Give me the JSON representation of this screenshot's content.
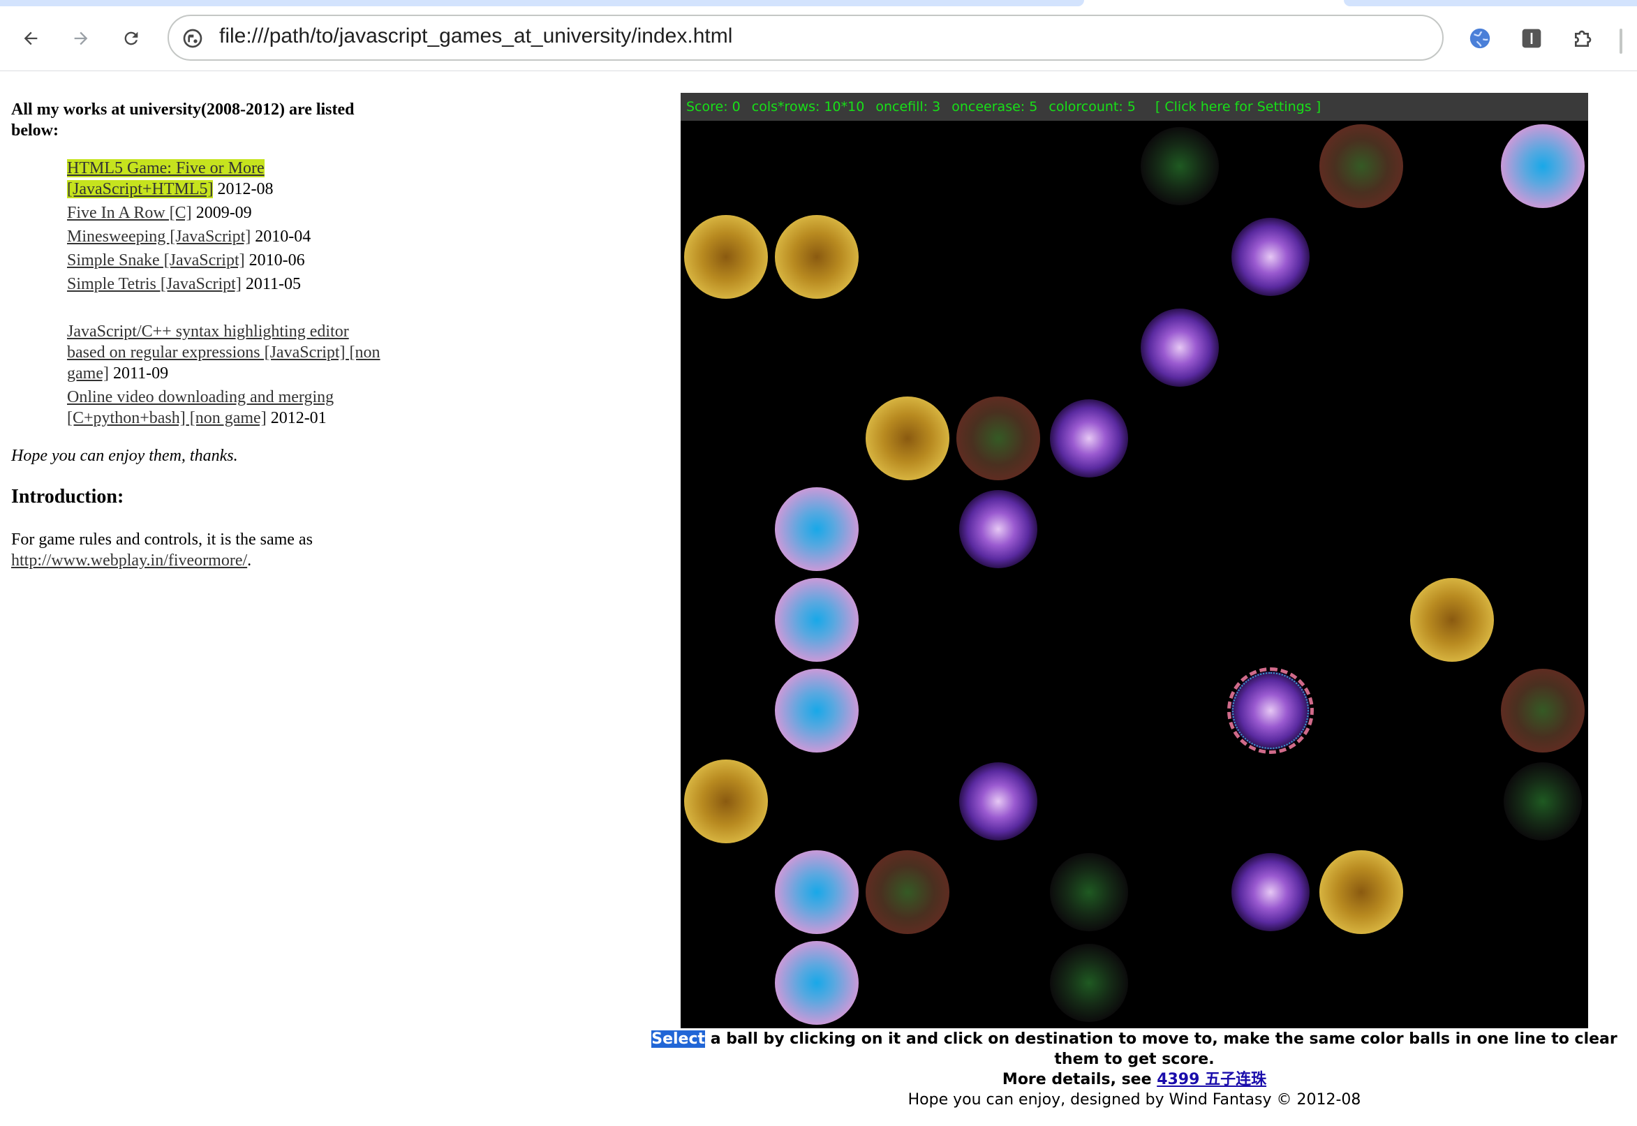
{
  "browser": {
    "url": "file:///path/to/javascript_games_at_university/index.html",
    "icons": [
      "back-arrow-icon",
      "forward-arrow-icon",
      "reload-icon",
      "site-info-icon",
      "globe-extension-icon",
      "reader-extension-icon",
      "puzzle-extensions-icon"
    ]
  },
  "left": {
    "heading": "All my works at university(2008-2012) are listed below:",
    "games": [
      {
        "link": "HTML5 Game: Five or More [JavaScript+HTML5]",
        "date": " 2012-08",
        "highlighted": true
      },
      {
        "link": "Five In A Row [C]",
        "date": " 2009-09"
      },
      {
        "link": "Minesweeping [JavaScript]",
        "date": " 2010-04"
      },
      {
        "link": "Simple Snake [JavaScript]",
        "date": " 2010-06"
      },
      {
        "link": "Simple Tetris [JavaScript]",
        "date": " 2011-05"
      }
    ],
    "others": [
      {
        "link": "JavaScript/C++ syntax highlighting editor based on regular expressions [JavaScript] [non game]",
        "date": " 2011-09"
      },
      {
        "link": "Online video downloading and merging [C+python+bash] [non game]",
        "date": " 2012-01"
      }
    ],
    "thanks": "Hope you can enjoy them, thanks.",
    "intro_heading": "Introduction:",
    "intro_text": "For game rules and controls, it is the same as ",
    "intro_link": "http://www.webplay.in/fiveormore/",
    "intro_end": "."
  },
  "game": {
    "status": {
      "score": "Score: 0",
      "size": "cols*rows: 10*10",
      "oncefill": "oncefill: 3",
      "onceerase": "onceerase: 5",
      "colorcount": "colorcount: 5",
      "settings": "[ Click here for Settings ]"
    },
    "balls": [
      {
        "col": 5,
        "row": 0,
        "color": "green",
        "preview": true
      },
      {
        "col": 7,
        "row": 0,
        "color": "red"
      },
      {
        "col": 9,
        "row": 0,
        "color": "blue"
      },
      {
        "col": 0,
        "row": 1,
        "color": "yellow"
      },
      {
        "col": 1,
        "row": 1,
        "color": "yellow"
      },
      {
        "col": 6,
        "row": 1,
        "color": "purple",
        "preview": true
      },
      {
        "col": 5,
        "row": 2,
        "color": "purple",
        "preview": true
      },
      {
        "col": 2,
        "row": 3,
        "color": "yellow"
      },
      {
        "col": 3,
        "row": 3,
        "color": "red"
      },
      {
        "col": 4,
        "row": 3,
        "color": "purple",
        "preview": true
      },
      {
        "col": 1,
        "row": 4,
        "color": "blue"
      },
      {
        "col": 3,
        "row": 4,
        "color": "purple",
        "preview": true
      },
      {
        "col": 1,
        "row": 5,
        "color": "blue"
      },
      {
        "col": 8,
        "row": 5,
        "color": "yellow"
      },
      {
        "col": 1,
        "row": 6,
        "color": "blue"
      },
      {
        "col": 6,
        "row": 6,
        "color": "purple",
        "selected": true
      },
      {
        "col": 9,
        "row": 6,
        "color": "red"
      },
      {
        "col": 0,
        "row": 7,
        "color": "yellow"
      },
      {
        "col": 3,
        "row": 7,
        "color": "purple",
        "preview": true
      },
      {
        "col": 9,
        "row": 7,
        "color": "green",
        "preview": true
      },
      {
        "col": 1,
        "row": 8,
        "color": "blue"
      },
      {
        "col": 2,
        "row": 8,
        "color": "red"
      },
      {
        "col": 4,
        "row": 8,
        "color": "green",
        "preview": true
      },
      {
        "col": 6,
        "row": 8,
        "color": "purple",
        "preview": true
      },
      {
        "col": 7,
        "row": 8,
        "color": "yellow"
      },
      {
        "col": 1,
        "row": 9,
        "color": "blue"
      },
      {
        "col": 4,
        "row": 9,
        "color": "green",
        "preview": true
      }
    ],
    "footer_select": "Select",
    "footer_line1": " a ball by clicking on it and click on destination to move to, make the same color balls in one line to clear them to get score.",
    "footer_more": "More details, see ",
    "footer_link": "4399 五子连珠",
    "footer_line3": "Hope you can enjoy, designed by Wind Fantasy © 2012-08"
  }
}
